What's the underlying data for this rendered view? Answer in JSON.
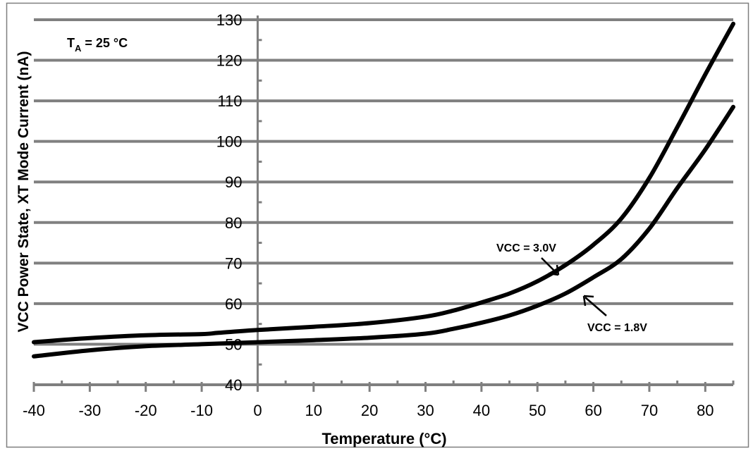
{
  "chart_data": {
    "type": "line",
    "title": "",
    "condition": {
      "main": "T",
      "sub": "A",
      "rest": " = 25 °C"
    },
    "xlabel": "Temperature (°C)",
    "ylabel": "VCC Power State, XT Mode Current (nA)",
    "xlim": [
      -40,
      85
    ],
    "ylim": [
      40,
      130
    ],
    "xticks": [
      -40,
      -30,
      -20,
      -10,
      0,
      10,
      20,
      30,
      40,
      50,
      60,
      70,
      80
    ],
    "yticks": [
      40,
      50,
      60,
      70,
      80,
      90,
      100,
      110,
      120,
      130
    ],
    "grid": "horizontal",
    "colors": {
      "line": "#000000",
      "grid": "#808080",
      "axis": "#7f7f7f"
    },
    "series": [
      {
        "name": "VCC = 3.0V",
        "x": [
          -40,
          -30,
          -20,
          -10,
          -7,
          0,
          10,
          20,
          30,
          35,
          40,
          45,
          50,
          55,
          60,
          65,
          70,
          75,
          80,
          85
        ],
        "y": [
          50.5,
          51.5,
          52.2,
          52.5,
          52.8,
          53.5,
          54.3,
          55.2,
          56.8,
          58.3,
          60.3,
          62.5,
          65.5,
          69.5,
          74.5,
          81,
          91,
          103.5,
          116.5,
          129
        ]
      },
      {
        "name": "VCC = 1.8V",
        "x": [
          -40,
          -30,
          -20,
          -10,
          0,
          10,
          20,
          30,
          35,
          40,
          45,
          50,
          55,
          60,
          65,
          70,
          75,
          80,
          85
        ],
        "y": [
          47,
          48.5,
          49.5,
          50,
          50.5,
          51,
          51.6,
          52.6,
          53.8,
          55.3,
          57.1,
          59.5,
          62.5,
          66.5,
          71,
          78.5,
          88.5,
          98,
          108.5
        ]
      }
    ]
  }
}
